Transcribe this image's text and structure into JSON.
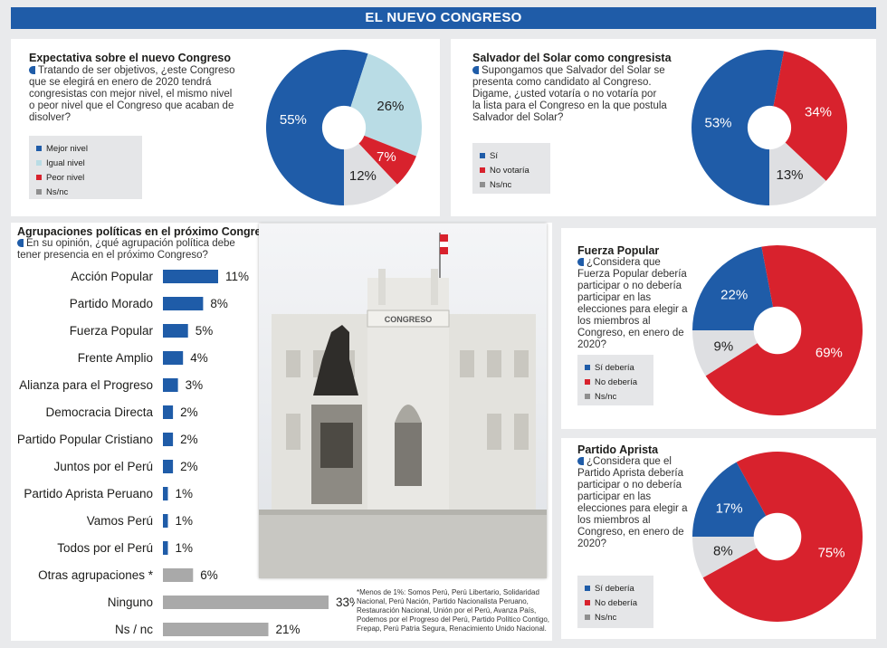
{
  "header": {
    "title": "EL NUEVO CONGRESO"
  },
  "colors": {
    "blue": "#1f5ca8",
    "light_blue": "#b9dce5",
    "red": "#d8222d",
    "gray": "#dedfe2",
    "dark_gray": "#8f8f8f",
    "bar_blue": "#1f5ca8",
    "bar_gray": "#a9a9a9"
  },
  "panels": {
    "expectativa": {
      "title": "Expectativa sobre el nuevo Congreso",
      "question": "Tratando de ser objetivos, ¿este Congreso que se elegirá en enero de 2020 tendrá congresistas con mejor nivel, el mismo nivel o peor nivel que el Congreso que acaban de disolver?",
      "legend": [
        "Mejor nivel",
        "Igual nivel",
        "Peor nivel",
        "Ns/nc"
      ]
    },
    "salvador": {
      "title": "Salvador del Solar como congresista",
      "question": "Supongamos que Salvador del Solar se presenta como candidato al Congreso. Digame, ¿usted votaría o no votaría por la lista para el Congreso en la que postula Salvador del Solar?",
      "legend": [
        "Sí",
        "No votaría",
        "Ns/nc"
      ]
    },
    "fuerza": {
      "title": "Fuerza Popular",
      "question": "¿Considera que Fuerza Popular debería participar o no debería participar en las elecciones para elegir a los miembros al Congreso, en enero de 2020?",
      "legend": [
        "Sí debería",
        "No debería",
        "Ns/nc"
      ]
    },
    "aprista": {
      "title": "Partido Aprista",
      "question": "¿Considera que el Partido Aprista debería participar o no debería participar en las elecciones para elegir a los miembros al Congreso, en enero de 2020?",
      "legend": [
        "Sí debería",
        "No debería",
        "Ns/nc"
      ]
    },
    "agrupaciones": {
      "title": "Agrupaciones políticas en el próximo Congreso",
      "question": "En su opinión, ¿qué agrupación política debe tener presencia en el próximo Congreso?"
    }
  },
  "photo": {
    "sign": "CONGRESO"
  },
  "footnote": "*Menos de 1%: Somos Perú, Perú Libertario, Solidaridad Nacional, Perú Nación, Partido Nacionalista Peruano, Restauración Nacional, Unión por el Perú, Avanza País, Podemos por el Progreso del Perú, Partido Político Contigo, Frepap, Perú Patria Segura, Renacimiento Unido Nacional.",
  "chart_data": [
    {
      "type": "pie",
      "title": "Expectativa sobre el nuevo Congreso",
      "categories": [
        "Mejor nivel",
        "Igual nivel",
        "Peor nivel",
        "Ns/nc"
      ],
      "values": [
        55,
        26,
        7,
        12
      ],
      "labels": [
        "55%",
        "26%",
        "7%",
        "12%"
      ]
    },
    {
      "type": "pie",
      "title": "Salvador del Solar como congresista",
      "categories": [
        "Sí",
        "No votaría",
        "Ns/nc"
      ],
      "values": [
        53,
        34,
        13
      ],
      "labels": [
        "53%",
        "34%",
        "13%"
      ]
    },
    {
      "type": "pie",
      "title": "Fuerza Popular",
      "categories": [
        "Sí debería",
        "No debería",
        "Ns/nc"
      ],
      "values": [
        22,
        69,
        9
      ],
      "labels": [
        "22%",
        "69%",
        "9%"
      ]
    },
    {
      "type": "pie",
      "title": "Partido Aprista",
      "categories": [
        "Sí debería",
        "No debería",
        "Ns/nc"
      ],
      "values": [
        17,
        75,
        8
      ],
      "labels": [
        "17%",
        "75%",
        "8%"
      ]
    },
    {
      "type": "bar",
      "title": "Agrupaciones políticas en el próximo Congreso",
      "categories": [
        "Acción Popular",
        "Partido Morado",
        "Fuerza Popular",
        "Frente Amplio",
        "Alianza para el Progreso",
        "Democracia Directa",
        "Partido Popular Cristiano",
        "Juntos por el Perú",
        "Partido Aprista Peruano",
        "Vamos Perú",
        "Todos por el Perú",
        "Otras agrupaciones *",
        "Ninguno",
        "Ns / nc"
      ],
      "values": [
        11,
        8,
        5,
        4,
        3,
        2,
        2,
        2,
        1,
        1,
        1,
        6,
        33,
        21
      ],
      "labels": [
        "11%",
        "8%",
        "5%",
        "4%",
        "3%",
        "2%",
        "2%",
        "2%",
        "1%",
        "1%",
        "1%",
        "6%",
        "33%",
        "21%"
      ],
      "highlight": [
        "blue",
        "blue",
        "blue",
        "blue",
        "blue",
        "blue",
        "blue",
        "blue",
        "blue",
        "blue",
        "blue",
        "gray",
        "gray",
        "gray"
      ]
    }
  ]
}
